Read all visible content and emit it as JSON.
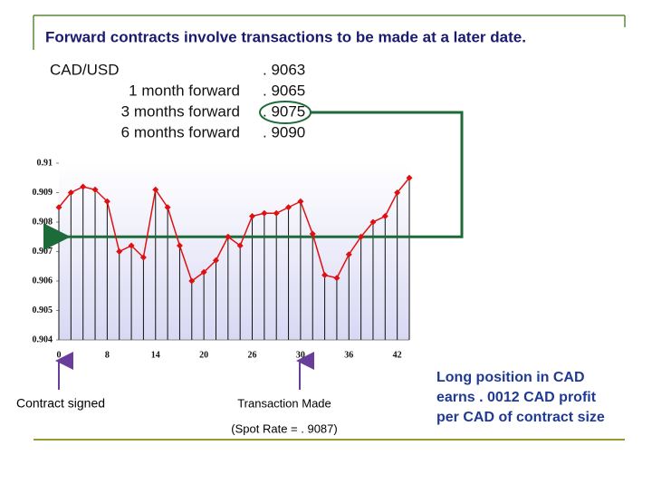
{
  "chart_data": {
    "type": "line",
    "title": "Forward contracts involve transactions to be made at a later date.",
    "rate_table": {
      "rows": [
        [
          "CAD/USD",
          ". 9063"
        ],
        [
          "1 month forward",
          ". 9065"
        ],
        [
          "3 months forward",
          ". 9075"
        ],
        [
          "6 months forward",
          ". 9090"
        ]
      ]
    },
    "categories": [
      "0",
      null,
      null,
      null,
      "8",
      null,
      null,
      null,
      "14",
      null,
      null,
      null,
      "20",
      null,
      null,
      null,
      "26",
      null,
      null,
      null,
      "30",
      null,
      null,
      null,
      "36",
      null,
      null,
      null,
      "42",
      null
    ],
    "series": [
      {
        "color": "#dd1111",
        "values": [
          0.9085,
          0.909,
          0.9092,
          0.9091,
          0.9087,
          0.907,
          0.9072,
          0.9068,
          0.9091,
          0.9085,
          0.9072,
          0.906,
          0.9063,
          0.9067,
          0.9075,
          0.9072,
          0.9082,
          0.9083,
          0.9083,
          0.9085,
          0.9087,
          0.9076,
          0.9062,
          0.9061,
          0.9069,
          0.9075,
          0.908,
          0.9082,
          0.909,
          0.9095
        ]
      }
    ],
    "ylim": [
      0.904,
      0.91
    ],
    "yticks": [
      0.904,
      0.905,
      0.906,
      0.907,
      0.908,
      0.909,
      0.91
    ],
    "reference_line": {
      "value": 0.9075,
      "color": "#1e6b3a"
    },
    "annotations": {
      "contract_signed": "Contract signed",
      "transaction_made": "Transaction Made",
      "spot_rate": "(Spot Rate = . 9087)",
      "profit": [
        "Long position in CAD",
        "earns . 0012 CAD profit",
        "per CAD of contract size"
      ]
    }
  }
}
